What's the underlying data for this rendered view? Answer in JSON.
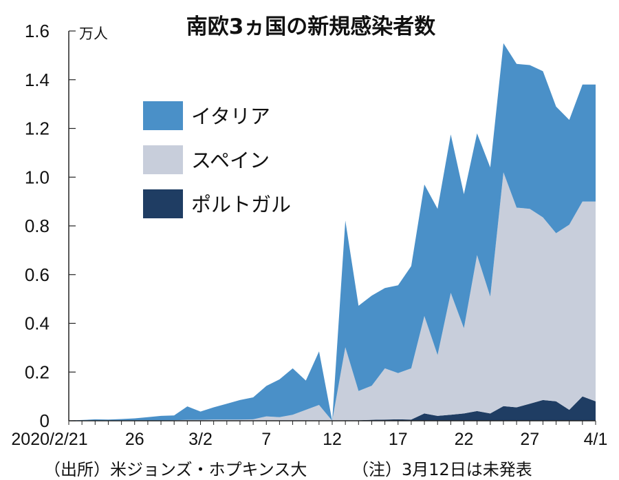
{
  "chart_data": {
    "type": "area",
    "stacked": true,
    "title": "南欧3ヵ国の新規感染者数",
    "unit": "万人",
    "ylim": [
      0,
      1.6
    ],
    "yticks": [
      "0",
      "0.2",
      "0.4",
      "0.6",
      "0.8",
      "1.0",
      "1.2",
      "1.4",
      "1.6"
    ],
    "x_tick_labels": [
      {
        "index": 0,
        "label": "2020/2/21"
      },
      {
        "index": 5,
        "label": "26"
      },
      {
        "index": 10,
        "label": "3/2"
      },
      {
        "index": 15,
        "label": "7"
      },
      {
        "index": 20,
        "label": "12"
      },
      {
        "index": 25,
        "label": "17"
      },
      {
        "index": 30,
        "label": "22"
      },
      {
        "index": 35,
        "label": "27"
      },
      {
        "index": 40,
        "label": "4/1"
      }
    ],
    "x": [
      "2/21",
      "2/22",
      "2/23",
      "2/24",
      "2/25",
      "2/26",
      "2/27",
      "2/28",
      "2/29",
      "3/1",
      "3/2",
      "3/3",
      "3/4",
      "3/5",
      "3/6",
      "3/7",
      "3/8",
      "3/9",
      "3/10",
      "3/11",
      "3/12",
      "3/13",
      "3/14",
      "3/15",
      "3/16",
      "3/17",
      "3/18",
      "3/19",
      "3/20",
      "3/21",
      "3/22",
      "3/23",
      "3/24",
      "3/25",
      "3/26",
      "3/27",
      "3/28",
      "3/29",
      "3/30",
      "3/31",
      "4/1"
    ],
    "series": [
      {
        "name": "ポルトガル",
        "color": "#1f3d63",
        "values": [
          0,
          0,
          0,
          0,
          0,
          0,
          0,
          0,
          0,
          0,
          0,
          0,
          0,
          0,
          0,
          0,
          0,
          0,
          0,
          0,
          0,
          0.002,
          0.002,
          0.004,
          0.005,
          0.006,
          0.005,
          0.03,
          0.02,
          0.025,
          0.03,
          0.04,
          0.03,
          0.06,
          0.055,
          0.07,
          0.085,
          0.08,
          0.045,
          0.1,
          0.08
        ]
      },
      {
        "name": "スペイン",
        "color": "#c8cedb",
        "values": [
          0,
          0,
          0,
          0,
          0,
          0,
          0,
          0,
          0.002,
          0.004,
          0.004,
          0.005,
          0.005,
          0.005,
          0.006,
          0.018,
          0.015,
          0.025,
          0.045,
          0.065,
          0,
          0.3,
          0.12,
          0.14,
          0.21,
          0.19,
          0.21,
          0.4,
          0.25,
          0.5,
          0.35,
          0.64,
          0.48,
          0.96,
          0.82,
          0.8,
          0.75,
          0.69,
          0.76,
          0.8,
          0.82
        ]
      },
      {
        "name": "イタリア",
        "color": "#4a90c8",
        "values": [
          0.001,
          0.003,
          0.006,
          0.005,
          0.007,
          0.01,
          0.015,
          0.02,
          0.02,
          0.055,
          0.034,
          0.05,
          0.065,
          0.08,
          0.09,
          0.125,
          0.155,
          0.19,
          0.12,
          0.22,
          0,
          0.52,
          0.35,
          0.37,
          0.33,
          0.36,
          0.42,
          0.54,
          0.6,
          0.65,
          0.55,
          0.5,
          0.53,
          0.53,
          0.59,
          0.59,
          0.6,
          0.52,
          0.43,
          0.48,
          0.48
        ]
      }
    ],
    "legend_placement": "top-left",
    "grid": false
  },
  "footer": {
    "source": "（出所）米ジョンズ・ホプキンス大",
    "note": "（注）3月12日は未発表"
  }
}
